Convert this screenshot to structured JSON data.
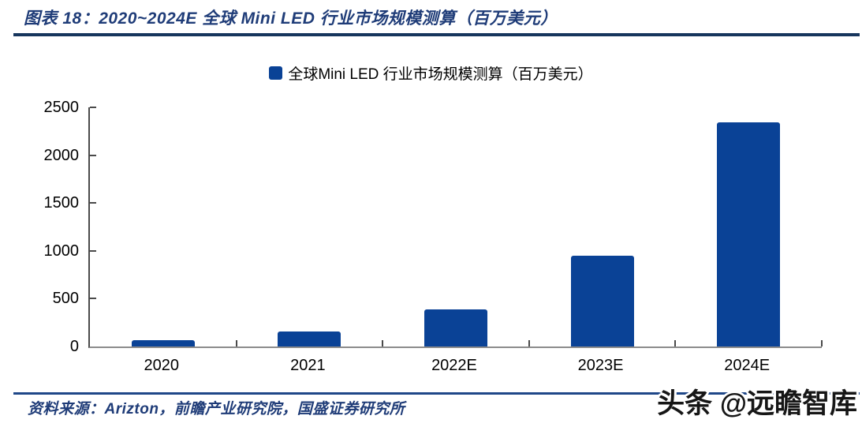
{
  "header": {
    "title": "图表 18：2020~2024E 全球 Mini LED 行业市场规模测算（百万美元）"
  },
  "chart_data": {
    "type": "bar",
    "title": "全球Mini LED 行业市场规模测算（百万美元）",
    "categories": [
      "2020",
      "2021",
      "2022E",
      "2023E",
      "2024E"
    ],
    "values": [
      65,
      160,
      385,
      950,
      2340
    ],
    "xlabel": "",
    "ylabel": "",
    "ylim": [
      0,
      2500
    ],
    "ytick_step": 500,
    "yticks": [
      0,
      500,
      1000,
      1500,
      2000,
      2500
    ],
    "grid": false,
    "legend_position": "top-center",
    "bar_color": "#0a4296"
  },
  "footer": {
    "source": "资料来源：Arizton，前瞻产业研究院，国盛证券研究所",
    "watermark": "头条 @远瞻智库"
  },
  "colors": {
    "navy_text": "#1f3c78",
    "title_rule": "#17365d",
    "footer_rule": "#1f4788",
    "bar": "#0a4296",
    "axis_dark": "#4a4a4a",
    "axis_light": "#8c8c8c",
    "watermark_text": "#161616"
  }
}
